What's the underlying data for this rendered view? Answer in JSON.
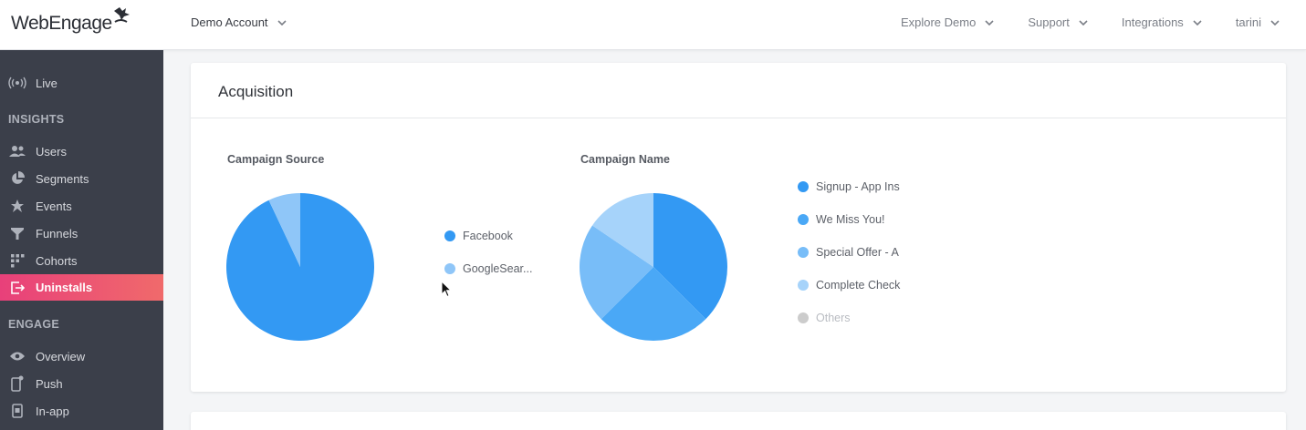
{
  "header": {
    "logo_text": "WebEngage",
    "account_label": "Demo Account",
    "nav": [
      {
        "label": "Explore Demo"
      },
      {
        "label": "Support"
      },
      {
        "label": "Integrations"
      },
      {
        "label": "tarini"
      }
    ]
  },
  "sidebar": {
    "live": {
      "label": "Live",
      "icon": "broadcast-icon"
    },
    "insights_heading": "INSIGHTS",
    "insights": [
      {
        "label": "Users",
        "icon": "users-icon"
      },
      {
        "label": "Segments",
        "icon": "pie-segment-icon"
      },
      {
        "label": "Events",
        "icon": "star-burst-icon"
      },
      {
        "label": "Funnels",
        "icon": "funnel-icon"
      },
      {
        "label": "Cohorts",
        "icon": "grid-dots-icon"
      },
      {
        "label": "Uninstalls",
        "icon": "exit-icon",
        "active": true
      }
    ],
    "engage_heading": "ENGAGE",
    "engage": [
      {
        "label": "Overview",
        "icon": "eye-icon"
      },
      {
        "label": "Push",
        "icon": "mobile-push-icon"
      },
      {
        "label": "In-app",
        "icon": "mobile-inapp-icon"
      }
    ]
  },
  "card": {
    "title": "Acquisition"
  },
  "colors": {
    "active_gradient_start": "#e8407a",
    "active_gradient_end": "#f06a6b",
    "sidebar_bg": "#3b3f4a",
    "blue_1": "#3399f3",
    "blue_2": "#4aa8f6",
    "blue_3": "#78bdf8",
    "blue_4": "#a6d3fa",
    "others": "#cccccc"
  },
  "chart_data": [
    {
      "type": "pie",
      "title": "Campaign Source",
      "categories": [
        "Facebook",
        "GoogleSear..."
      ],
      "values": [
        93,
        7
      ],
      "colors": [
        "#3399f3",
        "#8fc6f8"
      ]
    },
    {
      "type": "pie",
      "title": "Campaign Name",
      "categories": [
        "Signup - App Ins",
        "We Miss You!",
        "Special Offer - A",
        "Complete Check",
        "Others"
      ],
      "values": [
        37.5,
        25,
        22,
        15.5,
        0
      ],
      "colors": [
        "#3399f3",
        "#4aa8f6",
        "#78bdf8",
        "#a6d3fa",
        "#cccccc"
      ]
    }
  ]
}
